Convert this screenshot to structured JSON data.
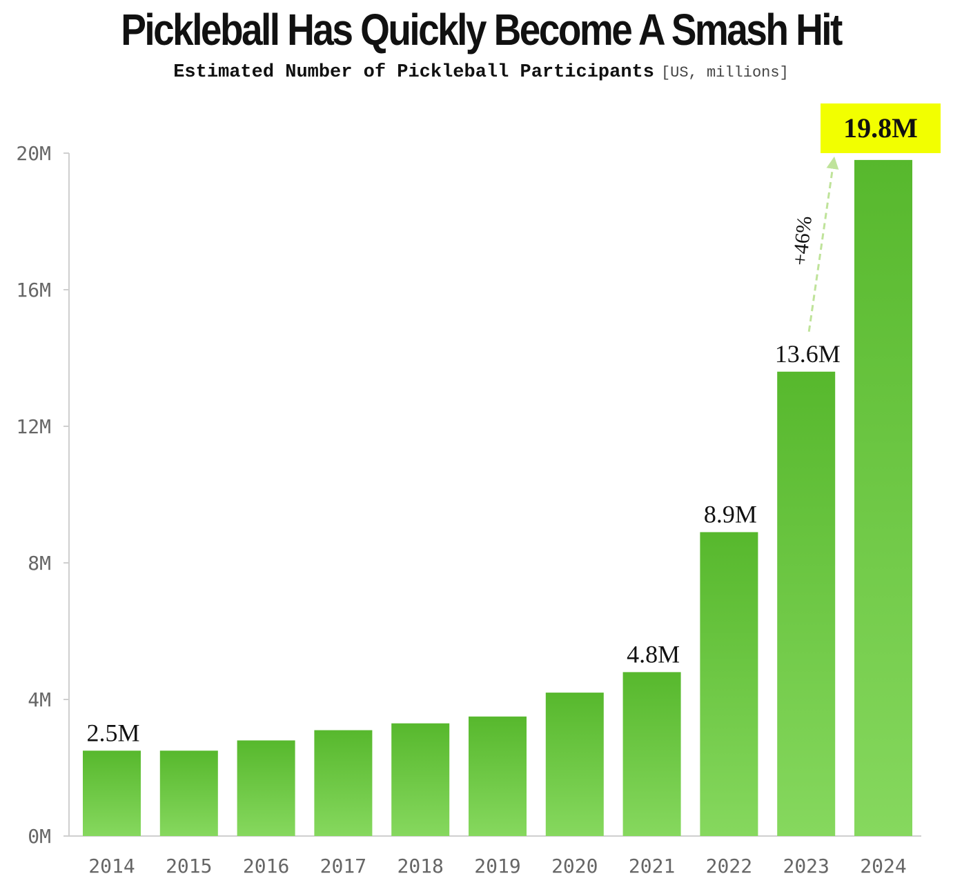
{
  "title": "Pickleball Has Quickly Become A Smash Hit",
  "subtitle": "Estimated Number of Pickleball Participants",
  "unit_note": "[US, millions]",
  "colors": {
    "bar_top": "#57b82d",
    "bar_bottom": "#86d85e",
    "highlight": "#f2ff00",
    "arrow": "#bfe39a",
    "axis": "#cfcfcf"
  },
  "chart_data": {
    "type": "bar",
    "title": "Pickleball Has Quickly Become A Smash Hit",
    "subtitle": "Estimated Number of Pickleball Participants [US, millions]",
    "xlabel": "",
    "ylabel": "",
    "categories": [
      "2014",
      "2015",
      "2016",
      "2017",
      "2018",
      "2019",
      "2020",
      "2021",
      "2022",
      "2023",
      "2024"
    ],
    "values": [
      2.5,
      2.5,
      2.8,
      3.1,
      3.3,
      3.5,
      4.2,
      4.8,
      8.9,
      13.6,
      19.8
    ],
    "ylim": [
      0,
      20
    ],
    "yticks": [
      0,
      4,
      8,
      12,
      16,
      20
    ],
    "ytick_labels": [
      "0M",
      "4M",
      "8M",
      "12M",
      "16M",
      "20M"
    ],
    "data_labels": [
      {
        "category": "2014",
        "text": "2.5M"
      },
      {
        "category": "2021",
        "text": "4.8M"
      },
      {
        "category": "2022",
        "text": "8.9M"
      },
      {
        "category": "2023",
        "text": "13.6M"
      }
    ],
    "highlight": {
      "category": "2024",
      "text": "19.8M"
    },
    "annotation": {
      "from": "2023",
      "to": "2024",
      "text": "+46%"
    },
    "grid": false,
    "legend": "none"
  }
}
